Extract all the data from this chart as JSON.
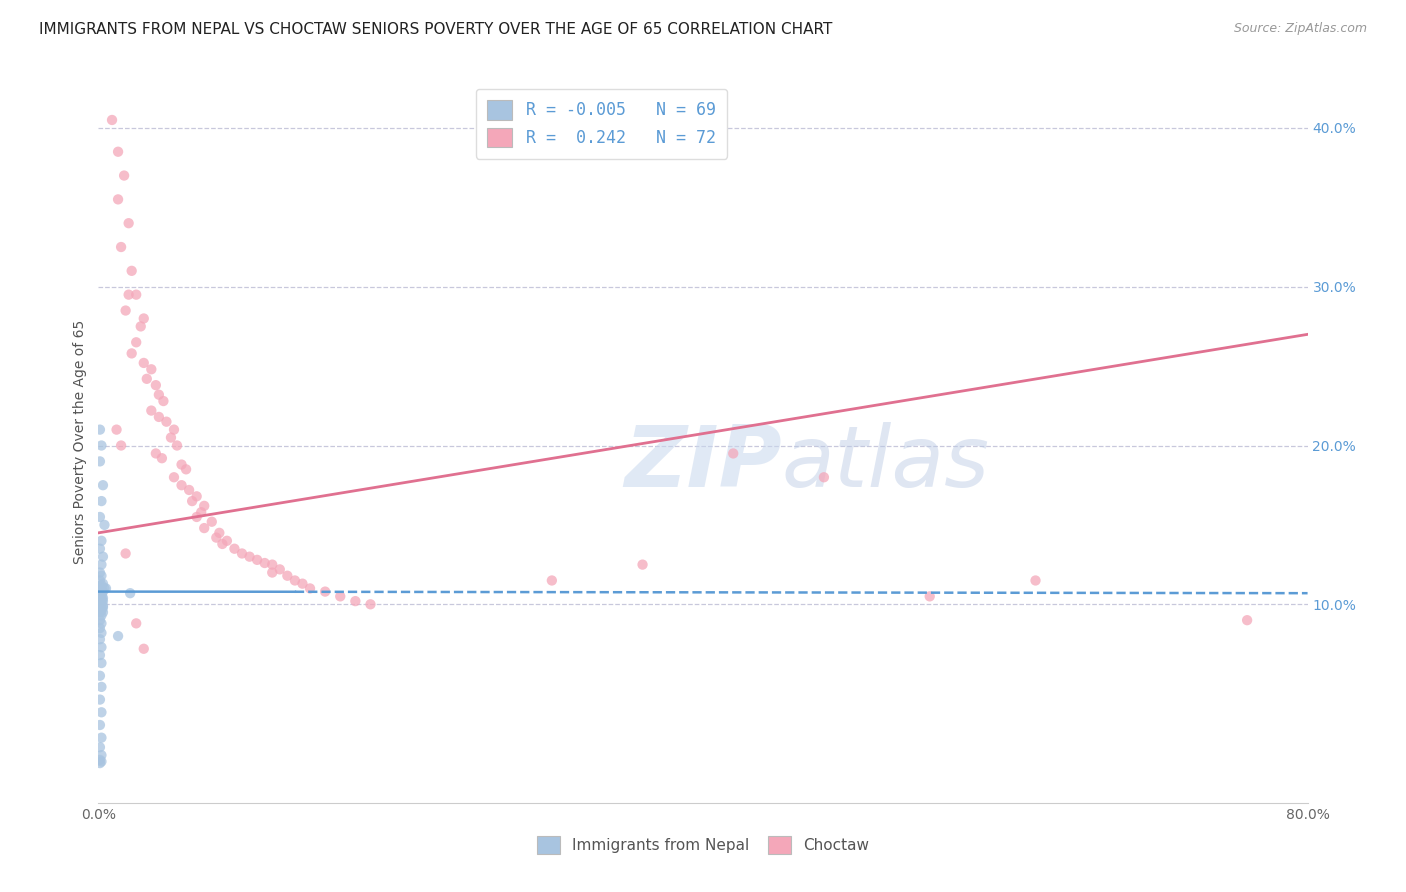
{
  "title": "IMMIGRANTS FROM NEPAL VS CHOCTAW SENIORS POVERTY OVER THE AGE OF 65 CORRELATION CHART",
  "source": "Source: ZipAtlas.com",
  "ylabel": "Seniors Poverty Over the Age of 65",
  "xlim": [
    0.0,
    0.8
  ],
  "ylim": [
    -0.025,
    0.43
  ],
  "x_ticks": [
    0.0,
    0.1,
    0.2,
    0.3,
    0.4,
    0.5,
    0.6,
    0.7,
    0.8
  ],
  "x_tick_labels": [
    "0.0%",
    "",
    "",
    "",
    "",
    "",
    "",
    "",
    "80.0%"
  ],
  "y_ticks_right": [
    0.1,
    0.2,
    0.3,
    0.4
  ],
  "y_tick_labels_right": [
    "10.0%",
    "20.0%",
    "30.0%",
    "40.0%"
  ],
  "color_nepal": "#a8c4e0",
  "color_choctaw": "#f4a7b9",
  "color_nepal_line": "#5b9bd5",
  "color_choctaw_line": "#e07090",
  "background_color": "#ffffff",
  "grid_color": "#c8c8dc",
  "title_fontsize": 11,
  "nepal_line_x0": 0.0,
  "nepal_line_y0": 0.108,
  "nepal_line_x1": 0.8,
  "nepal_line_y1": 0.107,
  "choctaw_line_x0": 0.0,
  "choctaw_line_y0": 0.145,
  "choctaw_line_x1": 0.8,
  "choctaw_line_y1": 0.27,
  "nepal_scatter_x": [
    0.001,
    0.002,
    0.001,
    0.003,
    0.002,
    0.001,
    0.004,
    0.002,
    0.001,
    0.003,
    0.002,
    0.001,
    0.002,
    0.001,
    0.003,
    0.002,
    0.001,
    0.004,
    0.002,
    0.001,
    0.003,
    0.002,
    0.001,
    0.002,
    0.001,
    0.002,
    0.001,
    0.003,
    0.002,
    0.001,
    0.002,
    0.001,
    0.002,
    0.001,
    0.003,
    0.002,
    0.001,
    0.002,
    0.001,
    0.002,
    0.001,
    0.002,
    0.001,
    0.002,
    0.001,
    0.002,
    0.001,
    0.002,
    0.001,
    0.002,
    0.001,
    0.002,
    0.001,
    0.002,
    0.001,
    0.002,
    0.001,
    0.002,
    0.001,
    0.021,
    0.013,
    0.005,
    0.003,
    0.003,
    0.003,
    0.002,
    0.002,
    0.001,
    0.001
  ],
  "nepal_scatter_y": [
    0.21,
    0.2,
    0.19,
    0.175,
    0.165,
    0.155,
    0.15,
    0.14,
    0.135,
    0.13,
    0.125,
    0.12,
    0.118,
    0.115,
    0.113,
    0.112,
    0.111,
    0.11,
    0.11,
    0.109,
    0.108,
    0.108,
    0.107,
    0.106,
    0.106,
    0.105,
    0.105,
    0.104,
    0.103,
    0.103,
    0.102,
    0.102,
    0.101,
    0.1,
    0.099,
    0.098,
    0.097,
    0.096,
    0.095,
    0.093,
    0.09,
    0.088,
    0.085,
    0.082,
    0.078,
    0.073,
    0.068,
    0.063,
    0.055,
    0.048,
    0.04,
    0.032,
    0.024,
    0.016,
    0.01,
    0.005,
    0.002,
    0.001,
    0.0,
    0.107,
    0.08,
    0.11,
    0.102,
    0.098,
    0.095,
    0.108,
    0.105,
    0.108,
    0.104
  ],
  "choctaw_scatter_x": [
    0.009,
    0.013,
    0.017,
    0.013,
    0.02,
    0.015,
    0.022,
    0.02,
    0.025,
    0.018,
    0.03,
    0.028,
    0.025,
    0.022,
    0.03,
    0.035,
    0.032,
    0.038,
    0.04,
    0.043,
    0.035,
    0.04,
    0.045,
    0.05,
    0.048,
    0.052,
    0.038,
    0.042,
    0.055,
    0.058,
    0.05,
    0.055,
    0.06,
    0.065,
    0.062,
    0.07,
    0.068,
    0.065,
    0.075,
    0.07,
    0.08,
    0.078,
    0.085,
    0.082,
    0.09,
    0.095,
    0.1,
    0.105,
    0.11,
    0.115,
    0.12,
    0.115,
    0.125,
    0.13,
    0.135,
    0.14,
    0.15,
    0.16,
    0.17,
    0.18,
    0.3,
    0.36,
    0.42,
    0.48,
    0.55,
    0.62,
    0.76,
    0.012,
    0.015,
    0.018,
    0.025,
    0.03
  ],
  "choctaw_scatter_y": [
    0.405,
    0.385,
    0.37,
    0.355,
    0.34,
    0.325,
    0.31,
    0.295,
    0.295,
    0.285,
    0.28,
    0.275,
    0.265,
    0.258,
    0.252,
    0.248,
    0.242,
    0.238,
    0.232,
    0.228,
    0.222,
    0.218,
    0.215,
    0.21,
    0.205,
    0.2,
    0.195,
    0.192,
    0.188,
    0.185,
    0.18,
    0.175,
    0.172,
    0.168,
    0.165,
    0.162,
    0.158,
    0.155,
    0.152,
    0.148,
    0.145,
    0.142,
    0.14,
    0.138,
    0.135,
    0.132,
    0.13,
    0.128,
    0.126,
    0.125,
    0.122,
    0.12,
    0.118,
    0.115,
    0.113,
    0.11,
    0.108,
    0.105,
    0.102,
    0.1,
    0.115,
    0.125,
    0.195,
    0.18,
    0.105,
    0.115,
    0.09,
    0.21,
    0.2,
    0.132,
    0.088,
    0.072
  ]
}
